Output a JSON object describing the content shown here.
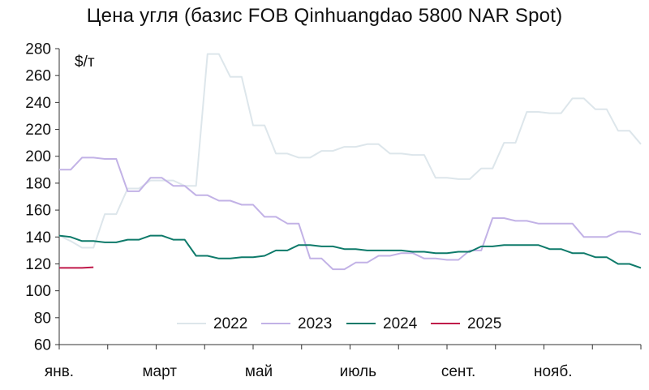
{
  "chart_data": {
    "type": "line",
    "title": "Цена угля (базис FOB Qinhuangdao 5800 NAR Spot)",
    "unit": "$/т",
    "ylim": [
      60,
      280
    ],
    "yticks": [
      60,
      80,
      100,
      120,
      140,
      160,
      180,
      200,
      220,
      240,
      260,
      280
    ],
    "xlim": [
      1,
      52
    ],
    "x_tick_labels": [
      {
        "label": "янв.",
        "week": 1
      },
      {
        "label": "март",
        "week": 9.8
      },
      {
        "label": "май",
        "week": 18.5
      },
      {
        "label": "июль",
        "week": 27.2
      },
      {
        "label": "сент.",
        "week": 36
      },
      {
        "label": "нояб.",
        "week": 44.3
      }
    ],
    "x_unit": "week",
    "grid": false,
    "legend_position": "bottom-center",
    "series": [
      {
        "name": "2022",
        "color": "#dde6eb",
        "points": [
          [
            1,
            141
          ],
          [
            2,
            137
          ],
          [
            3,
            132
          ],
          [
            4,
            132
          ],
          [
            5,
            157
          ],
          [
            6,
            157
          ],
          [
            7,
            176
          ],
          [
            8,
            176
          ],
          [
            9,
            182
          ],
          [
            10,
            182
          ],
          [
            11,
            182
          ],
          [
            12,
            178
          ],
          [
            13,
            178
          ],
          [
            14,
            276
          ],
          [
            15,
            276
          ],
          [
            16,
            259
          ],
          [
            17,
            259
          ],
          [
            18,
            223
          ],
          [
            19,
            223
          ],
          [
            20,
            202
          ],
          [
            21,
            202
          ],
          [
            22,
            199
          ],
          [
            23,
            199
          ],
          [
            24,
            204
          ],
          [
            25,
            204
          ],
          [
            26,
            207
          ],
          [
            27,
            207
          ],
          [
            28,
            209
          ],
          [
            29,
            209
          ],
          [
            30,
            202
          ],
          [
            31,
            202
          ],
          [
            32,
            201
          ],
          [
            33,
            201
          ],
          [
            34,
            184
          ],
          [
            35,
            184
          ],
          [
            36,
            183
          ],
          [
            37,
            183
          ],
          [
            38,
            191
          ],
          [
            39,
            191
          ],
          [
            40,
            210
          ],
          [
            41,
            210
          ],
          [
            42,
            233
          ],
          [
            43,
            233
          ],
          [
            44,
            232
          ],
          [
            45,
            232
          ],
          [
            46,
            243
          ],
          [
            47,
            243
          ],
          [
            48,
            235
          ],
          [
            49,
            235
          ],
          [
            50,
            219
          ],
          [
            51,
            219
          ],
          [
            52,
            209
          ]
        ]
      },
      {
        "name": "2023",
        "color": "#c2b2e6",
        "points": [
          [
            1,
            190
          ],
          [
            2,
            190
          ],
          [
            3,
            199
          ],
          [
            4,
            199
          ],
          [
            5,
            198
          ],
          [
            6,
            198
          ],
          [
            7,
            174
          ],
          [
            8,
            174
          ],
          [
            9,
            184
          ],
          [
            10,
            184
          ],
          [
            11,
            178
          ],
          [
            12,
            178
          ],
          [
            13,
            171
          ],
          [
            14,
            171
          ],
          [
            15,
            167
          ],
          [
            16,
            167
          ],
          [
            17,
            164
          ],
          [
            18,
            164
          ],
          [
            19,
            155
          ],
          [
            20,
            155
          ],
          [
            21,
            150
          ],
          [
            22,
            150
          ],
          [
            23,
            124
          ],
          [
            24,
            124
          ],
          [
            25,
            116
          ],
          [
            26,
            116
          ],
          [
            27,
            121
          ],
          [
            28,
            121
          ],
          [
            29,
            126
          ],
          [
            30,
            126
          ],
          [
            31,
            128
          ],
          [
            32,
            128
          ],
          [
            33,
            124
          ],
          [
            34,
            124
          ],
          [
            35,
            123
          ],
          [
            36,
            123
          ],
          [
            37,
            130
          ],
          [
            38,
            130
          ],
          [
            39,
            154
          ],
          [
            40,
            154
          ],
          [
            41,
            152
          ],
          [
            42,
            152
          ],
          [
            43,
            150
          ],
          [
            44,
            150
          ],
          [
            45,
            150
          ],
          [
            46,
            150
          ],
          [
            47,
            140
          ],
          [
            48,
            140
          ],
          [
            49,
            140
          ],
          [
            50,
            144
          ],
          [
            51,
            144
          ],
          [
            52,
            142
          ]
        ]
      },
      {
        "name": "2024",
        "color": "#0e7a6a",
        "points": [
          [
            1,
            141
          ],
          [
            2,
            140
          ],
          [
            3,
            137
          ],
          [
            4,
            137
          ],
          [
            5,
            136
          ],
          [
            6,
            136
          ],
          [
            7,
            138
          ],
          [
            8,
            138
          ],
          [
            9,
            141
          ],
          [
            10,
            141
          ],
          [
            11,
            138
          ],
          [
            12,
            138
          ],
          [
            13,
            126
          ],
          [
            14,
            126
          ],
          [
            15,
            124
          ],
          [
            16,
            124
          ],
          [
            17,
            125
          ],
          [
            18,
            125
          ],
          [
            19,
            126
          ],
          [
            20,
            130
          ],
          [
            21,
            130
          ],
          [
            22,
            134
          ],
          [
            23,
            134
          ],
          [
            24,
            133
          ],
          [
            25,
            133
          ],
          [
            26,
            131
          ],
          [
            27,
            131
          ],
          [
            28,
            130
          ],
          [
            29,
            130
          ],
          [
            30,
            130
          ],
          [
            31,
            130
          ],
          [
            32,
            129
          ],
          [
            33,
            129
          ],
          [
            34,
            128
          ],
          [
            35,
            128
          ],
          [
            36,
            129
          ],
          [
            37,
            129
          ],
          [
            38,
            133
          ],
          [
            39,
            133
          ],
          [
            40,
            134
          ],
          [
            41,
            134
          ],
          [
            42,
            134
          ],
          [
            43,
            134
          ],
          [
            44,
            131
          ],
          [
            45,
            131
          ],
          [
            46,
            128
          ],
          [
            47,
            128
          ],
          [
            48,
            125
          ],
          [
            49,
            125
          ],
          [
            50,
            120
          ],
          [
            51,
            120
          ],
          [
            52,
            117
          ]
        ]
      },
      {
        "name": "2025",
        "color": "#c0194a",
        "points": [
          [
            1,
            117
          ],
          [
            2,
            117
          ],
          [
            3,
            117
          ],
          [
            4,
            117.5
          ]
        ]
      }
    ]
  }
}
